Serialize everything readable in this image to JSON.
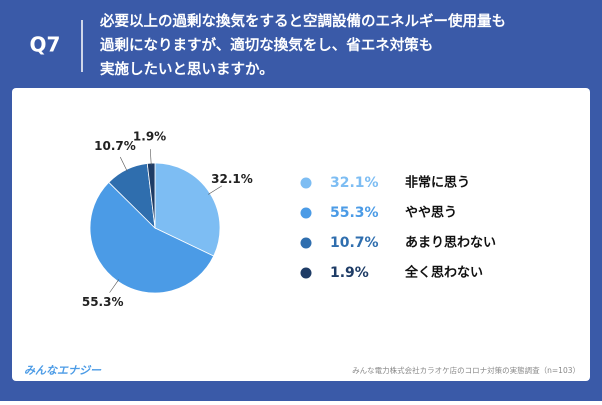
{
  "header": {
    "label": "Q7",
    "question": [
      "必要以上の過剰な換気をすると空調設備のエネルギー使用量も",
      "過剰になりますが、適切な換気をし、省エネ対策も",
      "実施したいと思いますか。"
    ]
  },
  "chart_data": {
    "type": "pie",
    "categories": [
      "非常に思う",
      "やや思う",
      "あまり思わない",
      "全く思わない"
    ],
    "values": [
      32.1,
      55.3,
      10.7,
      1.9
    ],
    "value_labels": [
      "32.1%",
      "55.3%",
      "10.7%",
      "1.9%"
    ],
    "colors": [
      "#7dbdf3",
      "#4b9be6",
      "#2f6eae",
      "#1e3c66"
    ],
    "legend": "right"
  },
  "source": "みんな電力株式会社カラオケ店のコロナ対策の実態調査（n=103）",
  "logo": "みんなエナジー"
}
